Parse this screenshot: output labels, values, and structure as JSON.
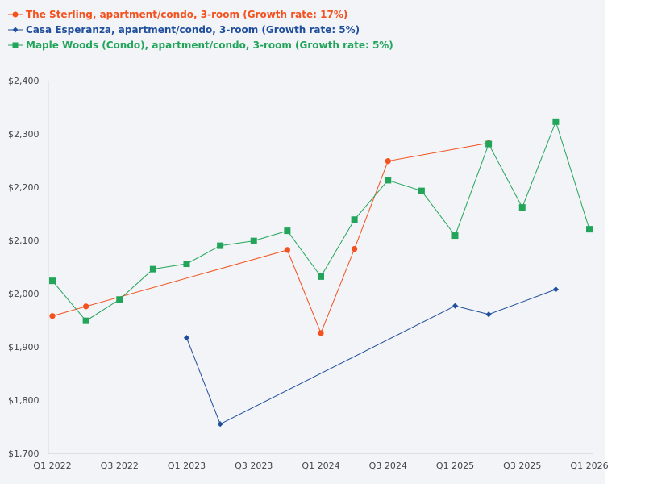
{
  "chart_data": {
    "type": "line",
    "title": "",
    "xlabel": "",
    "ylabel": "",
    "ylim": [
      1700,
      2400
    ],
    "y_ticks": [
      1700,
      1800,
      1900,
      2000,
      2100,
      2200,
      2300,
      2400
    ],
    "y_tick_labels": [
      "$1,700",
      "$1,800",
      "$1,900",
      "$2,000",
      "$2,100",
      "$2,200",
      "$2,300",
      "$2,400"
    ],
    "x_tick_labels": [
      "Q1 2022",
      "Q3 2022",
      "Q1 2023",
      "Q3 2023",
      "Q1 2024",
      "Q3 2024",
      "Q1 2025",
      "Q3 2025",
      "Q1 2026"
    ],
    "x_tick_index": [
      0,
      2,
      4,
      6,
      8,
      10,
      12,
      14,
      16
    ],
    "x_periods": [
      "Q1 2022",
      "Q2 2022",
      "Q3 2022",
      "Q4 2022",
      "Q1 2023",
      "Q2 2023",
      "Q3 2023",
      "Q4 2023",
      "Q1 2024",
      "Q2 2024",
      "Q3 2024",
      "Q4 2024",
      "Q1 2025",
      "Q2 2025",
      "Q3 2025",
      "Q4 2025",
      "Q1 2026"
    ],
    "legend_position": "top-left",
    "grid": false,
    "series": [
      {
        "name": "The Sterling, apartment/condo, 3-room (Growth rate: 17%)",
        "color": "#f4511e",
        "marker": "circle",
        "points": [
          {
            "x": "Q1 2022",
            "y": 1958
          },
          {
            "x": "Q2 2022",
            "y": 1976
          },
          {
            "x": "Q4 2023",
            "y": 2082
          },
          {
            "x": "Q1 2024",
            "y": 1926
          },
          {
            "x": "Q2 2024",
            "y": 2084
          },
          {
            "x": "Q3 2024",
            "y": 2249
          },
          {
            "x": "Q2 2025",
            "y": 2283
          }
        ]
      },
      {
        "name": "Casa Esperanza, apartment/condo, 3-room (Growth rate: 5%)",
        "color": "#1f4e9c",
        "marker": "diamond",
        "points": [
          {
            "x": "Q1 2023",
            "y": 1917
          },
          {
            "x": "Q2 2023",
            "y": 1755
          },
          {
            "x": "Q1 2025",
            "y": 1977
          },
          {
            "x": "Q2 2025",
            "y": 1961
          },
          {
            "x": "Q4 2025",
            "y": 2008
          }
        ]
      },
      {
        "name": "Maple Woods (Condo), apartment/condo, 3-room (Growth rate: 5%)",
        "color": "#22a55a",
        "marker": "square",
        "points": [
          {
            "x": "Q1 2022",
            "y": 2024
          },
          {
            "x": "Q2 2022",
            "y": 1949
          },
          {
            "x": "Q3 2022",
            "y": 1989
          },
          {
            "x": "Q4 2022",
            "y": 2046
          },
          {
            "x": "Q1 2023",
            "y": 2056
          },
          {
            "x": "Q2 2023",
            "y": 2090
          },
          {
            "x": "Q3 2023",
            "y": 2099
          },
          {
            "x": "Q4 2023",
            "y": 2118
          },
          {
            "x": "Q1 2024",
            "y": 2032
          },
          {
            "x": "Q2 2024",
            "y": 2139
          },
          {
            "x": "Q3 2024",
            "y": 2213
          },
          {
            "x": "Q4 2024",
            "y": 2193
          },
          {
            "x": "Q1 2025",
            "y": 2109
          },
          {
            "x": "Q2 2025",
            "y": 2281
          },
          {
            "x": "Q3 2025",
            "y": 2162
          },
          {
            "x": "Q4 2025",
            "y": 2323
          },
          {
            "x": "Q1 2026",
            "y": 2121
          }
        ]
      }
    ]
  }
}
